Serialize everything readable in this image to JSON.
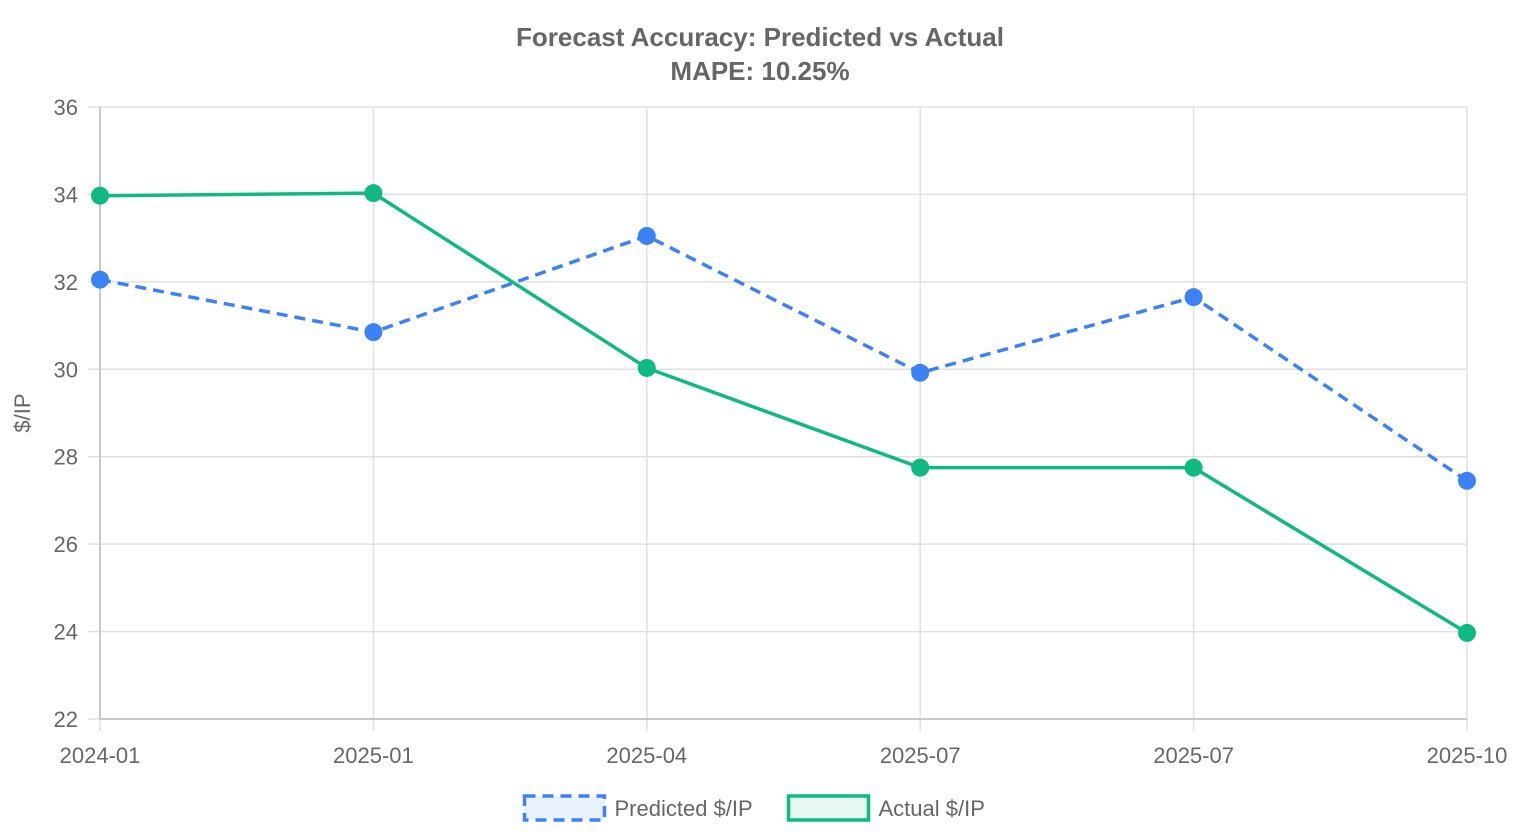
{
  "chart_data": {
    "type": "line",
    "title": "Forecast Accuracy: Predicted vs Actual",
    "subtitle": "MAPE: 10.25%",
    "xlabel": "",
    "ylabel": "$/IP",
    "categories": [
      "2024-01",
      "2025-01",
      "2025-04",
      "2025-07",
      "2025-07",
      "2025-10"
    ],
    "ylim": [
      22,
      36
    ],
    "yticks": [
      22,
      24,
      26,
      28,
      30,
      32,
      34,
      36
    ],
    "grid": true,
    "legend_position": "bottom",
    "series": [
      {
        "name": "Predicted $/IP",
        "values": [
          32.05,
          30.85,
          33.05,
          29.92,
          31.65,
          27.45
        ],
        "color": "#3b82f6",
        "fill": "#eaf2fe",
        "dashed": true
      },
      {
        "name": "Actual $/IP",
        "values": [
          33.97,
          34.03,
          30.03,
          27.75,
          27.75,
          23.97
        ],
        "color": "#10b981",
        "fill": "#e7f8f1",
        "dashed": false
      }
    ]
  }
}
